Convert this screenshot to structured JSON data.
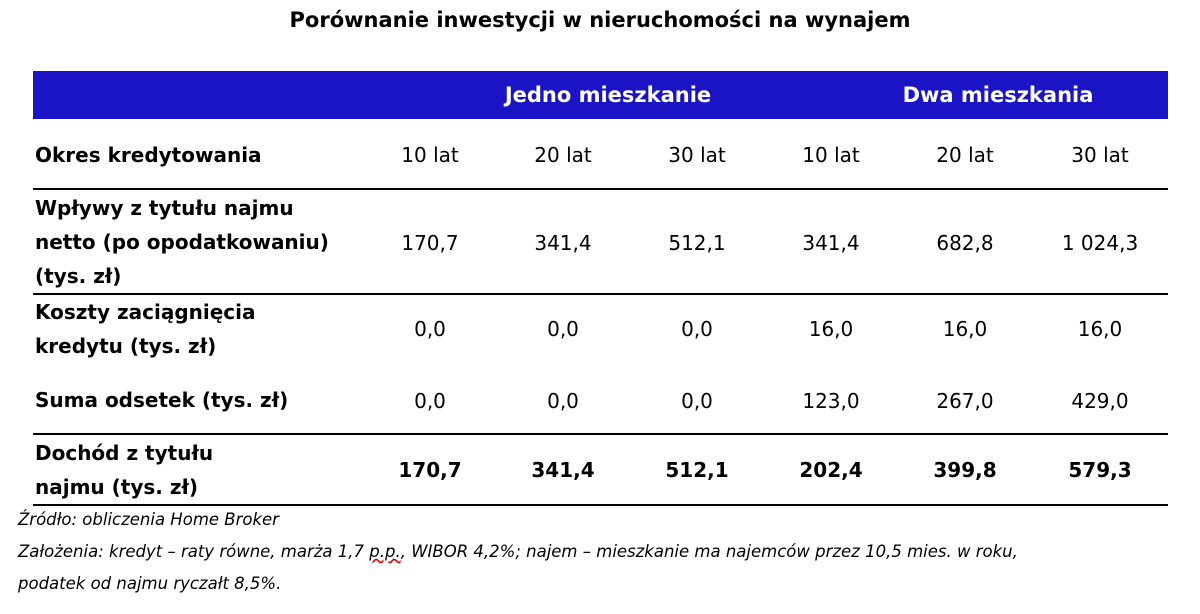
{
  "title": "Porównanie inwestycji w nieruchomości na wynajem",
  "groups": [
    "Jedno mieszkanie",
    "Dwa mieszkania"
  ],
  "period_row": {
    "label": "Okres kredytowania",
    "values": [
      "10 lat",
      "20 lat",
      "30 lat",
      "10 lat",
      "20 lat",
      "30 lat"
    ]
  },
  "rows": [
    {
      "label_lines": [
        "Wpływy z tytułu najmu",
        "netto (po opodatkowaniu)",
        "(tys. zł)"
      ],
      "values": [
        "170,7",
        "341,4",
        "512,1",
        "341,4",
        "682,8",
        "1 024,3"
      ]
    },
    {
      "label_lines": [
        "Koszty zaciągnięcia",
        "kredytu (tys. zł)"
      ],
      "values": [
        "0,0",
        "0,0",
        "0,0",
        "16,0",
        "16,0",
        "16,0"
      ]
    },
    {
      "label_lines": [
        "Suma odsetek (tys. zł)"
      ],
      "values": [
        "0,0",
        "0,0",
        "0,0",
        "123,0",
        "267,0",
        "429,0"
      ]
    },
    {
      "label_lines": [
        "Dochód z tytułu",
        "najmu (tys. zł)"
      ],
      "values": [
        "170,7",
        "341,4",
        "512,1",
        "202,4",
        "399,8",
        "579,3"
      ]
    }
  ],
  "notes": {
    "source": "Źródło: obliczenia Home Broker",
    "assumptions_pre": "Założenia: kredyt – raty równe, marża 1,7 ",
    "assumptions_marked": "p.p.",
    "assumptions_post": ", WIBOR 4,2%; najem – mieszkanie ma najemców przez 10,5 mies. w roku,",
    "assumptions_line2": "podatek od najmu ryczałt 8,5%."
  }
}
